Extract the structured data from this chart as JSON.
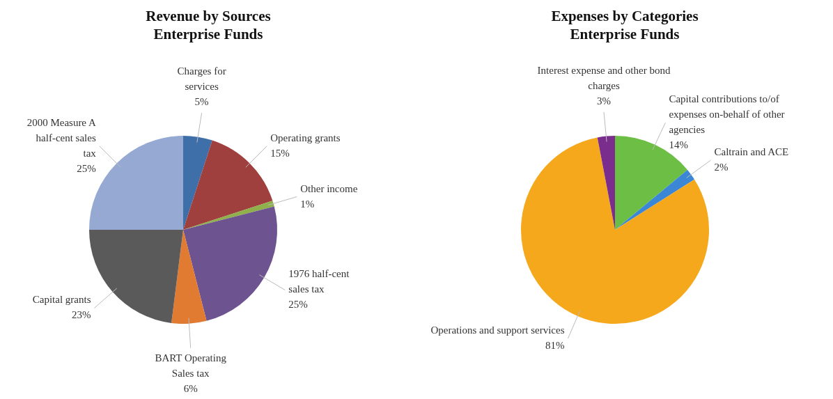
{
  "chart_data": [
    {
      "type": "pie",
      "title": "Revenue by Sources\nEnterprise Funds",
      "categories": [
        "Charges for services",
        "Operating grants",
        "Other income",
        "1976 half-cent sales tax",
        "BART Operating Sales tax",
        "Capital grants",
        "2000 Measure A half-cent sales tax"
      ],
      "values": [
        5,
        15,
        1,
        25,
        6,
        23,
        25
      ],
      "value_labels": [
        "5%",
        "15%",
        "1%",
        "25%",
        "6%",
        "23%",
        "25%"
      ],
      "colors": [
        "#3e6fa8",
        "#a0403e",
        "#8fb04a",
        "#6d5490",
        "#e07b31",
        "#5a5a5a",
        "#95a9d3"
      ],
      "legend": false
    },
    {
      "type": "pie",
      "title": "Expenses by Categories\nEnterprise Funds",
      "categories": [
        "Capital contributions to/of expenses on-behalf of other agencies",
        "Caltrain and ACE",
        "Operations and support services",
        "Interest expense and other bond charges"
      ],
      "values": [
        14,
        2,
        81,
        3
      ],
      "value_labels": [
        "14%",
        "2%",
        "81%",
        "3%"
      ],
      "colors": [
        "#6cbf44",
        "#3b87d6",
        "#f5a81c",
        "#7b2d8e"
      ],
      "legend": false
    }
  ]
}
